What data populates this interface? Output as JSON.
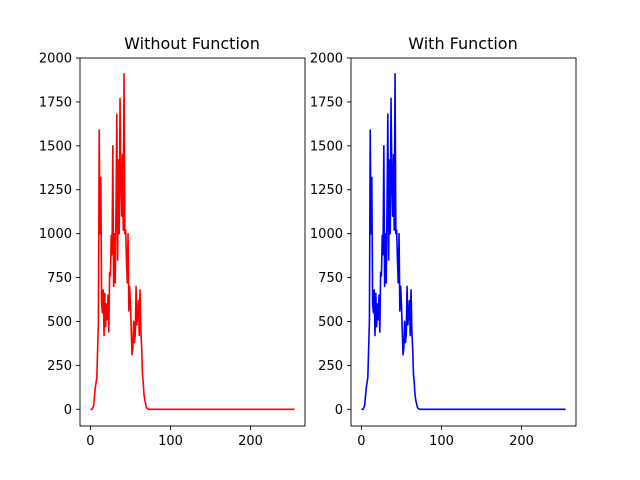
{
  "chart_data": [
    {
      "type": "line",
      "title": "Without Function",
      "xlabel": "",
      "ylabel": "",
      "xlim": [
        -13,
        268
      ],
      "ylim": [
        -95,
        2000
      ],
      "xticks": [
        0,
        100,
        200
      ],
      "yticks": [
        0,
        250,
        500,
        750,
        1000,
        1250,
        1500,
        1750,
        2000
      ],
      "grid": false,
      "color": "#ff0000",
      "series": [
        {
          "x": [
            0,
            2,
            4,
            6,
            8,
            10,
            11,
            12,
            13,
            14,
            15,
            16,
            17,
            18,
            19,
            20,
            21,
            22,
            23,
            24,
            25,
            26,
            27,
            28,
            29,
            30,
            31,
            32,
            33,
            34,
            35,
            36,
            37,
            38,
            39,
            40,
            41,
            42,
            43,
            44,
            45,
            46,
            47,
            48,
            49,
            50,
            51,
            52,
            53,
            54,
            55,
            56,
            57,
            58,
            59,
            60,
            61,
            62,
            63,
            64,
            65,
            66,
            67,
            68,
            69,
            70,
            71,
            72,
            73,
            74,
            75,
            76,
            77,
            78,
            79,
            80,
            81,
            82,
            83,
            84,
            85,
            86,
            87,
            88,
            89,
            90,
            91,
            92,
            93,
            94,
            95,
            96,
            97,
            98,
            100,
            110,
            120,
            150,
            200,
            255
          ],
          "y": [
            0,
            0,
            20,
            120,
            180,
            500,
            1590,
            1000,
            1320,
            600,
            550,
            680,
            420,
            660,
            470,
            600,
            510,
            650,
            440,
            780,
            760,
            990,
            880,
            1500,
            700,
            1000,
            720,
            1150,
            1680,
            850,
            1420,
            1000,
            1770,
            1300,
            1100,
            1450,
            1020,
            1910,
            1000,
            1020,
            850,
            720,
            1000,
            560,
            700,
            600,
            450,
            310,
            350,
            500,
            380,
            420,
            700,
            480,
            550,
            620,
            420,
            680,
            450,
            350,
            200,
            150,
            80,
            50,
            30,
            10,
            5,
            2,
            0,
            0,
            0,
            0,
            0,
            0,
            0,
            0,
            0,
            0,
            0,
            0,
            0,
            0,
            0,
            0,
            0,
            0,
            0,
            0,
            0,
            0,
            0,
            0,
            0,
            0,
            0,
            0,
            0,
            0,
            0,
            0
          ]
        }
      ]
    },
    {
      "type": "line",
      "title": "With Function",
      "xlabel": "",
      "ylabel": "",
      "xlim": [
        -13,
        268
      ],
      "ylim": [
        -95,
        2000
      ],
      "xticks": [
        0,
        100,
        200
      ],
      "yticks": [
        0,
        250,
        500,
        750,
        1000,
        1250,
        1500,
        1750,
        2000
      ],
      "grid": false,
      "color": "#0000ff",
      "series": [
        {
          "x": [
            0,
            2,
            4,
            6,
            8,
            10,
            11,
            12,
            13,
            14,
            15,
            16,
            17,
            18,
            19,
            20,
            21,
            22,
            23,
            24,
            25,
            26,
            27,
            28,
            29,
            30,
            31,
            32,
            33,
            34,
            35,
            36,
            37,
            38,
            39,
            40,
            41,
            42,
            43,
            44,
            45,
            46,
            47,
            48,
            49,
            50,
            51,
            52,
            53,
            54,
            55,
            56,
            57,
            58,
            59,
            60,
            61,
            62,
            63,
            64,
            65,
            66,
            67,
            68,
            69,
            70,
            71,
            72,
            73,
            74,
            75,
            76,
            77,
            78,
            79,
            80,
            81,
            82,
            83,
            84,
            85,
            86,
            87,
            88,
            89,
            90,
            91,
            92,
            93,
            94,
            95,
            96,
            97,
            98,
            100,
            110,
            120,
            150,
            200,
            255
          ],
          "y": [
            0,
            0,
            20,
            120,
            180,
            500,
            1590,
            1000,
            1320,
            600,
            550,
            680,
            420,
            660,
            470,
            600,
            510,
            650,
            440,
            780,
            760,
            990,
            880,
            1500,
            700,
            1000,
            720,
            1150,
            1680,
            850,
            1420,
            1000,
            1770,
            1300,
            1100,
            1450,
            1020,
            1910,
            1000,
            1020,
            850,
            720,
            1000,
            560,
            700,
            600,
            450,
            310,
            350,
            500,
            380,
            420,
            700,
            480,
            550,
            620,
            420,
            680,
            450,
            350,
            200,
            150,
            80,
            50,
            30,
            10,
            5,
            2,
            0,
            0,
            0,
            0,
            0,
            0,
            0,
            0,
            0,
            0,
            0,
            0,
            0,
            0,
            0,
            0,
            0,
            0,
            0,
            0,
            0,
            0,
            0,
            0,
            0,
            0,
            0,
            0,
            0,
            0,
            0,
            0
          ]
        }
      ]
    }
  ]
}
